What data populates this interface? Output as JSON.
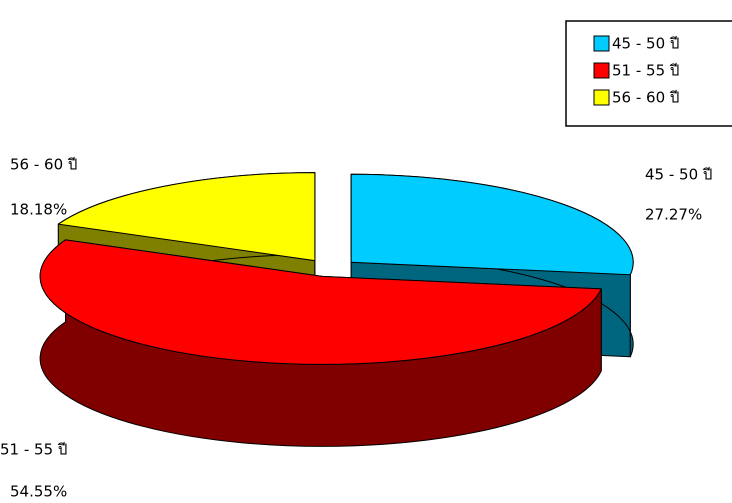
{
  "chart_data": {
    "type": "pie3d",
    "categories": [
      "45 - 50 ปี",
      "51 - 55 ปี",
      "56 - 60 ปี"
    ],
    "values": [
      27.27,
      54.55,
      18.18
    ],
    "value_labels": [
      "27.27%",
      "54.55%",
      "18.18%"
    ],
    "colors": [
      "#00ccff",
      "#ff0000",
      "#ffff00"
    ],
    "legend": "top-right"
  }
}
